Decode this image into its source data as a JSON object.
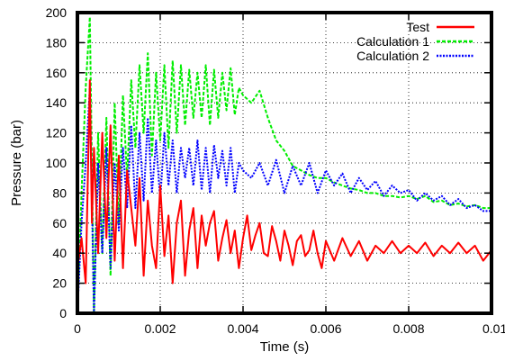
{
  "chart_data": {
    "type": "line",
    "xlabel": "Time (s)",
    "ylabel": "Pressure (bar)",
    "xlim": [
      0,
      0.01
    ],
    "ylim": [
      0,
      200
    ],
    "x_ticks": [
      "0",
      "0.002",
      "0.004",
      "0.006",
      "0.008",
      "0.01"
    ],
    "y_ticks": [
      "0",
      "20",
      "40",
      "60",
      "80",
      "100",
      "120",
      "140",
      "160",
      "180",
      "200"
    ],
    "grid": true,
    "legend_position": "top-right",
    "series": [
      {
        "name": "Test",
        "color": "#ff0000",
        "style": "solid",
        "x": [
          0,
          0.0001,
          0.0002,
          0.0003,
          0.00035,
          0.0004,
          0.0005,
          0.0006,
          0.0007,
          0.0008,
          0.0009,
          0.001,
          0.0011,
          0.0012,
          0.0013,
          0.0014,
          0.0015,
          0.0016,
          0.0017,
          0.0018,
          0.0019,
          0.002,
          0.0021,
          0.0022,
          0.0023,
          0.0024,
          0.0025,
          0.0026,
          0.0027,
          0.0028,
          0.0029,
          0.003,
          0.0031,
          0.0032,
          0.0033,
          0.0034,
          0.0035,
          0.0036,
          0.0037,
          0.0038,
          0.0039,
          0.004,
          0.0041,
          0.0042,
          0.0043,
          0.0044,
          0.0045,
          0.0046,
          0.0047,
          0.0048,
          0.0049,
          0.005,
          0.0051,
          0.0052,
          0.0053,
          0.0054,
          0.0055,
          0.0056,
          0.0057,
          0.0058,
          0.0059,
          0.006,
          0.0062,
          0.0064,
          0.0066,
          0.0068,
          0.007,
          0.0072,
          0.0074,
          0.0076,
          0.0078,
          0.008,
          0.0082,
          0.0084,
          0.0086,
          0.0088,
          0.009,
          0.0092,
          0.0094,
          0.0096,
          0.0098,
          0.01
        ],
        "values": [
          30,
          50,
          20,
          155,
          60,
          110,
          40,
          120,
          50,
          125,
          35,
          105,
          30,
          95,
          70,
          45,
          90,
          25,
          75,
          45,
          30,
          85,
          38,
          65,
          20,
          60,
          75,
          25,
          55,
          70,
          30,
          65,
          45,
          60,
          68,
          35,
          50,
          62,
          40,
          55,
          30,
          50,
          65,
          42,
          52,
          60,
          40,
          38,
          58,
          48,
          35,
          55,
          45,
          32,
          48,
          52,
          38,
          42,
          55,
          40,
          30,
          48,
          35,
          50,
          38,
          48,
          35,
          45,
          40,
          48,
          40,
          45,
          40,
          47,
          38,
          45,
          40,
          47,
          40,
          45,
          35,
          42
        ]
      },
      {
        "name": "Calculation 1",
        "color": "#00ee00",
        "style": "dashed",
        "x": [
          0,
          0.0001,
          0.0002,
          0.0003,
          0.0004,
          0.0005,
          0.0006,
          0.0007,
          0.0008,
          0.0009,
          0.001,
          0.0011,
          0.0012,
          0.0013,
          0.0014,
          0.0015,
          0.0016,
          0.0017,
          0.0018,
          0.0019,
          0.002,
          0.0021,
          0.0022,
          0.0023,
          0.0024,
          0.0025,
          0.0026,
          0.0027,
          0.0028,
          0.0029,
          0.003,
          0.0031,
          0.0032,
          0.0033,
          0.0034,
          0.0035,
          0.0036,
          0.0037,
          0.0038,
          0.0039,
          0.004,
          0.0042,
          0.0044,
          0.0046,
          0.0048,
          0.005,
          0.0052,
          0.0054,
          0.0056,
          0.0058,
          0.006,
          0.0062,
          0.0064,
          0.0066,
          0.0068,
          0.007,
          0.0072,
          0.0074,
          0.0076,
          0.0078,
          0.008,
          0.0082,
          0.0084,
          0.0086,
          0.0088,
          0.009,
          0.0092,
          0.0094,
          0.0096,
          0.0098,
          0.01
        ],
        "values": [
          0,
          80,
          150,
          197,
          0,
          120,
          40,
          130,
          25,
          140,
          60,
          145,
          90,
          155,
          110,
          165,
          120,
          173,
          105,
          160,
          115,
          165,
          110,
          168,
          120,
          165,
          125,
          162,
          130,
          160,
          130,
          165,
          125,
          162,
          130,
          160,
          135,
          163,
          132,
          150,
          145,
          140,
          148,
          130,
          115,
          108,
          98,
          95,
          92,
          90,
          90,
          87,
          85,
          83,
          82,
          80,
          80,
          78,
          78,
          77,
          78,
          76,
          78,
          74,
          75,
          72,
          73,
          71,
          72,
          70,
          70
        ]
      },
      {
        "name": "Calculation 2",
        "color": "#0000ff",
        "style": "dotted",
        "x": [
          0,
          0.0001,
          0.0002,
          0.0003,
          0.0004,
          0.0005,
          0.0006,
          0.0007,
          0.0008,
          0.0009,
          0.001,
          0.0011,
          0.0012,
          0.0013,
          0.0014,
          0.0015,
          0.0016,
          0.0017,
          0.0018,
          0.0019,
          0.002,
          0.0021,
          0.0022,
          0.0023,
          0.0024,
          0.0025,
          0.0026,
          0.0027,
          0.0028,
          0.0029,
          0.003,
          0.0031,
          0.0032,
          0.0033,
          0.0034,
          0.0035,
          0.0036,
          0.0037,
          0.0038,
          0.0039,
          0.004,
          0.0042,
          0.0044,
          0.0046,
          0.0048,
          0.005,
          0.0052,
          0.0054,
          0.0056,
          0.0058,
          0.006,
          0.0062,
          0.0064,
          0.0066,
          0.0068,
          0.007,
          0.0072,
          0.0074,
          0.0076,
          0.0078,
          0.008,
          0.0082,
          0.0084,
          0.0086,
          0.0088,
          0.009,
          0.0092,
          0.0094,
          0.0096,
          0.0098,
          0.01
        ],
        "values": [
          0,
          60,
          100,
          150,
          0,
          100,
          40,
          110,
          30,
          100,
          55,
          110,
          70,
          125,
          70,
          120,
          75,
          130,
          80,
          115,
          75,
          120,
          85,
          115,
          80,
          110,
          90,
          110,
          85,
          115,
          82,
          110,
          80,
          112,
          90,
          108,
          85,
          110,
          80,
          100,
          95,
          90,
          100,
          85,
          102,
          80,
          98,
          85,
          100,
          80,
          95,
          85,
          93,
          80,
          90,
          82,
          88,
          78,
          85,
          80,
          82,
          75,
          80,
          75,
          78,
          72,
          76,
          70,
          72,
          68,
          68
        ]
      }
    ]
  }
}
